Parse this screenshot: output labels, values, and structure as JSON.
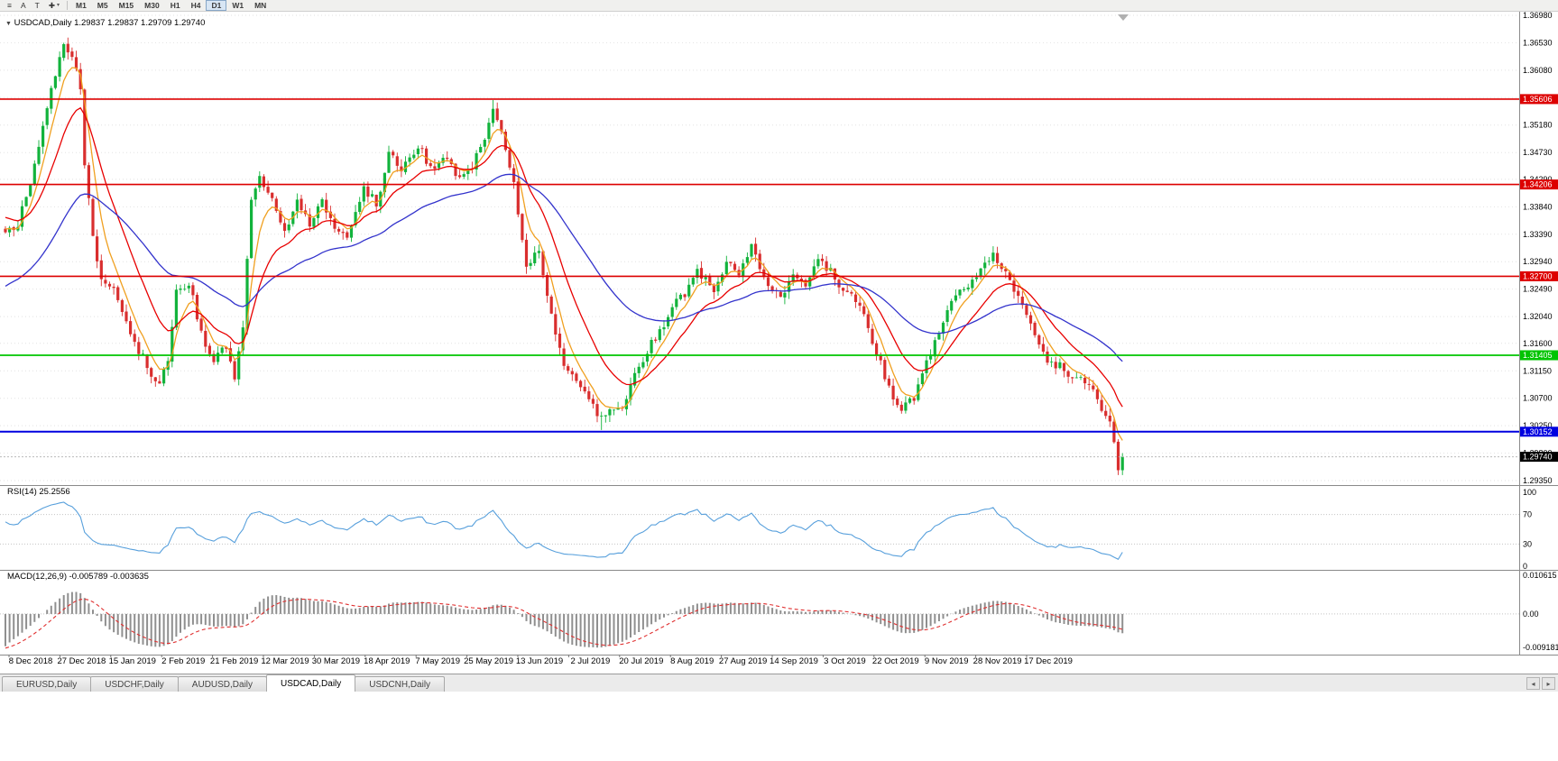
{
  "toolbar": {
    "menu_icon": "≡",
    "a_button": "A",
    "t_button": "T",
    "cursor_icon": "✚",
    "dropdown_caret": "▾",
    "timeframes": [
      {
        "label": "M1",
        "active": false
      },
      {
        "label": "M5",
        "active": false
      },
      {
        "label": "M15",
        "active": false
      },
      {
        "label": "M30",
        "active": false
      },
      {
        "label": "H1",
        "active": false
      },
      {
        "label": "H4",
        "active": false
      },
      {
        "label": "D1",
        "active": true
      },
      {
        "label": "W1",
        "active": false
      },
      {
        "label": "MN",
        "active": false
      }
    ]
  },
  "chart": {
    "collapse_arrow": "▼",
    "symbol_title": "USDCAD,Daily",
    "ohlc": "1.29837 1.29837 1.29709 1.29740",
    "axis_ticks": [
      "1.36980",
      "1.36530",
      "1.36080",
      "1.35630",
      "1.35180",
      "1.34730",
      "1.34290",
      "1.33840",
      "1.33390",
      "1.32940",
      "1.32490",
      "1.32040",
      "1.31600",
      "1.31150",
      "1.30700",
      "1.30250",
      "1.29800",
      "1.29350"
    ],
    "hlines": [
      {
        "price": 1.35606,
        "label": "1.35606",
        "color": "#dd0000",
        "width": 1.6
      },
      {
        "price": 1.34206,
        "label": "1.34206",
        "color": "#dd0000",
        "width": 1.6
      },
      {
        "price": 1.327,
        "label": "1.32700",
        "color": "#dd0000",
        "width": 1.6
      },
      {
        "price": 1.31405,
        "label": "1.31405",
        "color": "#00c400",
        "width": 1.8
      },
      {
        "price": 1.30152,
        "label": "1.30152",
        "color": "#0000e0",
        "width": 2
      }
    ],
    "current_price": {
      "value": 1.2974,
      "label": "1.29740",
      "badge_color": "#000000"
    }
  },
  "rsi": {
    "label": "RSI(14) 25.2556",
    "levels": [
      "100",
      "70",
      "30",
      "0"
    ],
    "line_color": "#58a0dc"
  },
  "macd": {
    "label": "MACD(12,26,9) -0.005789 -0.003635",
    "levels": [
      "0.010615",
      "0.00",
      "-0.009181"
    ],
    "bar_color": "#8f8f8f",
    "signal_color": "#e03030"
  },
  "dates": [
    "8 Dec 2018",
    "27 Dec 2018",
    "15 Jan 2019",
    "2 Feb 2019",
    "21 Feb 2019",
    "12 Mar 2019",
    "30 Mar 2019",
    "18 Apr 2019",
    "7 May 2019",
    "25 May 2019",
    "13 Jun 2019",
    "2 Jul 2019",
    "20 Jul 2019",
    "8 Aug 2019",
    "27 Aug 2019",
    "14 Sep 2019",
    "3 Oct 2019",
    "22 Oct 2019",
    "9 Nov 2019",
    "28 Nov 2019",
    "17 Dec 2019"
  ],
  "tabbar": {
    "tabs": [
      {
        "label": "EURUSD,Daily",
        "active": false
      },
      {
        "label": "USDCHF,Daily",
        "active": false
      },
      {
        "label": "AUDUSD,Daily",
        "active": false
      },
      {
        "label": "USDCAD,Daily",
        "active": true
      },
      {
        "label": "USDCNH,Daily",
        "active": false
      }
    ],
    "left_arrow": "◂",
    "right_arrow": "▸"
  },
  "chart_data": {
    "type": "candlestick",
    "symbol": "USDCAD",
    "timeframe": "Daily",
    "visible_range": {
      "price_max": 1.3698,
      "price_min": 1.2935
    },
    "num_candles": 269,
    "candle_colors": {
      "bull": "#12b33c",
      "bear": "#d92e2e"
    },
    "moving_averages": [
      {
        "name": "fast",
        "color": "#f0a020",
        "alpha": 0.3,
        "init": 1.335
      },
      {
        "name": "medium",
        "color": "#e80000",
        "alpha": 0.12,
        "init": 1.337
      },
      {
        "name": "slow",
        "color": "#3333cc",
        "alpha": 0.042,
        "init": 1.325
      }
    ],
    "price_path": [
      [
        0,
        1.334
      ],
      [
        3,
        1.336
      ],
      [
        6,
        1.342
      ],
      [
        9,
        1.352
      ],
      [
        12,
        1.36
      ],
      [
        14,
        1.3645
      ],
      [
        16,
        1.3628
      ],
      [
        18,
        1.3575
      ],
      [
        19,
        1.345
      ],
      [
        21,
        1.333
      ],
      [
        23,
        1.326
      ],
      [
        26,
        1.3245
      ],
      [
        28,
        1.321
      ],
      [
        31,
        1.316
      ],
      [
        34,
        1.3125
      ],
      [
        37,
        1.309
      ],
      [
        39,
        1.313
      ],
      [
        41,
        1.324
      ],
      [
        44,
        1.3255
      ],
      [
        47,
        1.318
      ],
      [
        50,
        1.313
      ],
      [
        53,
        1.3155
      ],
      [
        55,
        1.31
      ],
      [
        57,
        1.319
      ],
      [
        59,
        1.339
      ],
      [
        61,
        1.343
      ],
      [
        64,
        1.339
      ],
      [
        67,
        1.334
      ],
      [
        70,
        1.339
      ],
      [
        73,
        1.335
      ],
      [
        76,
        1.339
      ],
      [
        79,
        1.3345
      ],
      [
        82,
        1.333
      ],
      [
        86,
        1.3415
      ],
      [
        89,
        1.339
      ],
      [
        92,
        1.347
      ],
      [
        95,
        1.344
      ],
      [
        99,
        1.348
      ],
      [
        102,
        1.345
      ],
      [
        105,
        1.3465
      ],
      [
        109,
        1.343
      ],
      [
        112,
        1.345
      ],
      [
        115,
        1.349
      ],
      [
        117,
        1.3545
      ],
      [
        119,
        1.35
      ],
      [
        122,
        1.342
      ],
      [
        125,
        1.328
      ],
      [
        128,
        1.331
      ],
      [
        130,
        1.323
      ],
      [
        134,
        1.312
      ],
      [
        137,
        1.3095
      ],
      [
        140,
        1.307
      ],
      [
        143,
        1.3035
      ],
      [
        145,
        1.306
      ],
      [
        148,
        1.3045
      ],
      [
        150,
        1.309
      ],
      [
        153,
        1.313
      ],
      [
        156,
        1.317
      ],
      [
        160,
        1.322
      ],
      [
        163,
        1.324
      ],
      [
        166,
        1.328
      ],
      [
        170,
        1.324
      ],
      [
        173,
        1.329
      ],
      [
        176,
        1.327
      ],
      [
        179,
        1.332
      ],
      [
        182,
        1.326
      ],
      [
        186,
        1.323
      ],
      [
        189,
        1.327
      ],
      [
        192,
        1.325
      ],
      [
        195,
        1.33
      ],
      [
        199,
        1.327
      ],
      [
        202,
        1.324
      ],
      [
        205,
        1.322
      ],
      [
        209,
        1.314
      ],
      [
        212,
        1.309
      ],
      [
        215,
        1.305
      ],
      [
        218,
        1.307
      ],
      [
        221,
        1.313
      ],
      [
        224,
        1.317
      ],
      [
        227,
        1.323
      ],
      [
        231,
        1.325
      ],
      [
        234,
        1.328
      ],
      [
        237,
        1.33
      ],
      [
        240,
        1.327
      ],
      [
        244,
        1.322
      ],
      [
        247,
        1.317
      ],
      [
        250,
        1.313
      ],
      [
        254,
        1.312
      ],
      [
        257,
        1.31
      ],
      [
        260,
        1.309
      ],
      [
        263,
        1.305
      ],
      [
        265,
        1.3032
      ],
      [
        266,
        1.2998
      ],
      [
        267,
        1.2952
      ],
      [
        268,
        1.2974
      ]
    ],
    "rsi": {
      "period": 14,
      "last_value": 25.2556
    },
    "macd": {
      "fast": 12,
      "slow": 26,
      "signal": 9,
      "last_main": -0.005789,
      "last_signal": -0.003635
    },
    "support_resistance_levels": [
      1.35606,
      1.34206,
      1.327,
      1.31405,
      1.30152
    ],
    "last_close": 1.2974
  }
}
